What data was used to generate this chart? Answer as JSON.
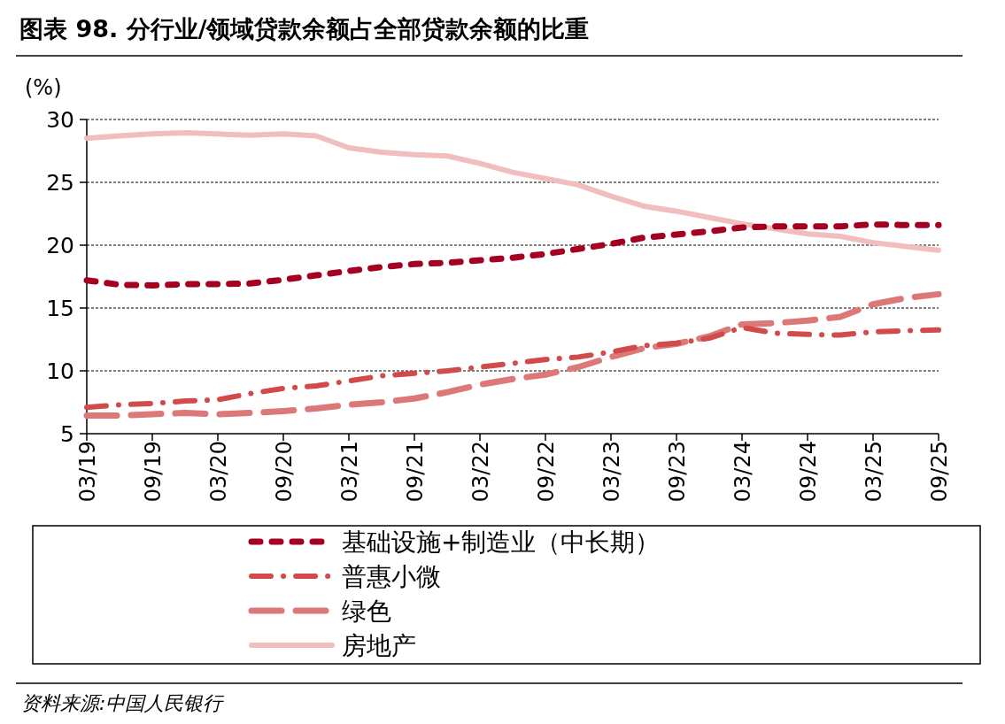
{
  "chart_data": {
    "type": "line",
    "title": "图表 98. 分行业/领域贷款余额占全部贷款余额的比重",
    "ylabel": "(%)",
    "categories": [
      "03/19",
      null,
      "09/19",
      null,
      "03/20",
      null,
      "09/20",
      null,
      "03/21",
      null,
      "09/21",
      null,
      "03/22",
      null,
      "09/22",
      null,
      "03/23",
      null,
      "09/23",
      null,
      "03/24",
      null,
      "09/24",
      null,
      "03/25",
      null,
      "09/25"
    ],
    "series": [
      {
        "name": "基础设施+制造业（中长期）",
        "color": "#a50021",
        "line_style": "dashed",
        "values": [
          17.2,
          16.85,
          16.8,
          16.9,
          16.9,
          16.95,
          17.25,
          17.6,
          17.95,
          18.26,
          18.5,
          18.6,
          18.8,
          19.0,
          19.3,
          19.7,
          20.1,
          20.6,
          20.85,
          21.1,
          21.4,
          21.5,
          21.5,
          21.5,
          21.65,
          21.6,
          21.6
        ]
      },
      {
        "name": "普惠小微",
        "color": "#d24b4b",
        "line_style": "dashdot",
        "values": [
          7.1,
          7.3,
          7.4,
          7.6,
          7.7,
          8.2,
          8.6,
          8.8,
          9.2,
          9.6,
          9.8,
          10.0,
          10.3,
          10.6,
          10.9,
          11.1,
          11.5,
          12.0,
          12.2,
          12.6,
          13.45,
          13.0,
          12.9,
          12.85,
          13.1,
          13.2,
          13.25
        ]
      },
      {
        "name": "绿色",
        "color": "#dc7878",
        "line_style": "longdash",
        "values": [
          6.45,
          6.45,
          6.55,
          6.65,
          6.55,
          6.65,
          6.8,
          7.0,
          7.3,
          7.5,
          7.8,
          8.3,
          8.9,
          9.35,
          9.7,
          10.3,
          11.1,
          11.8,
          12.15,
          12.75,
          13.7,
          13.8,
          14.0,
          14.3,
          15.3,
          15.8,
          16.1
        ]
      },
      {
        "name": "房地产",
        "color": "#f0bebe",
        "line_style": "solid",
        "values": [
          28.5,
          28.7,
          28.85,
          28.95,
          28.85,
          28.75,
          28.85,
          28.7,
          27.75,
          27.4,
          27.2,
          27.1,
          26.5,
          25.8,
          25.3,
          24.8,
          23.9,
          23.1,
          22.7,
          22.2,
          21.7,
          21.3,
          20.9,
          20.7,
          20.2,
          19.9,
          19.6
        ]
      }
    ],
    "ylim": [
      5,
      30
    ],
    "yticks": [
      5,
      10,
      15,
      20,
      25,
      30
    ],
    "grid": "y",
    "legend": "bottom",
    "annotations": [
      "资料来源:中国人民银行"
    ]
  }
}
